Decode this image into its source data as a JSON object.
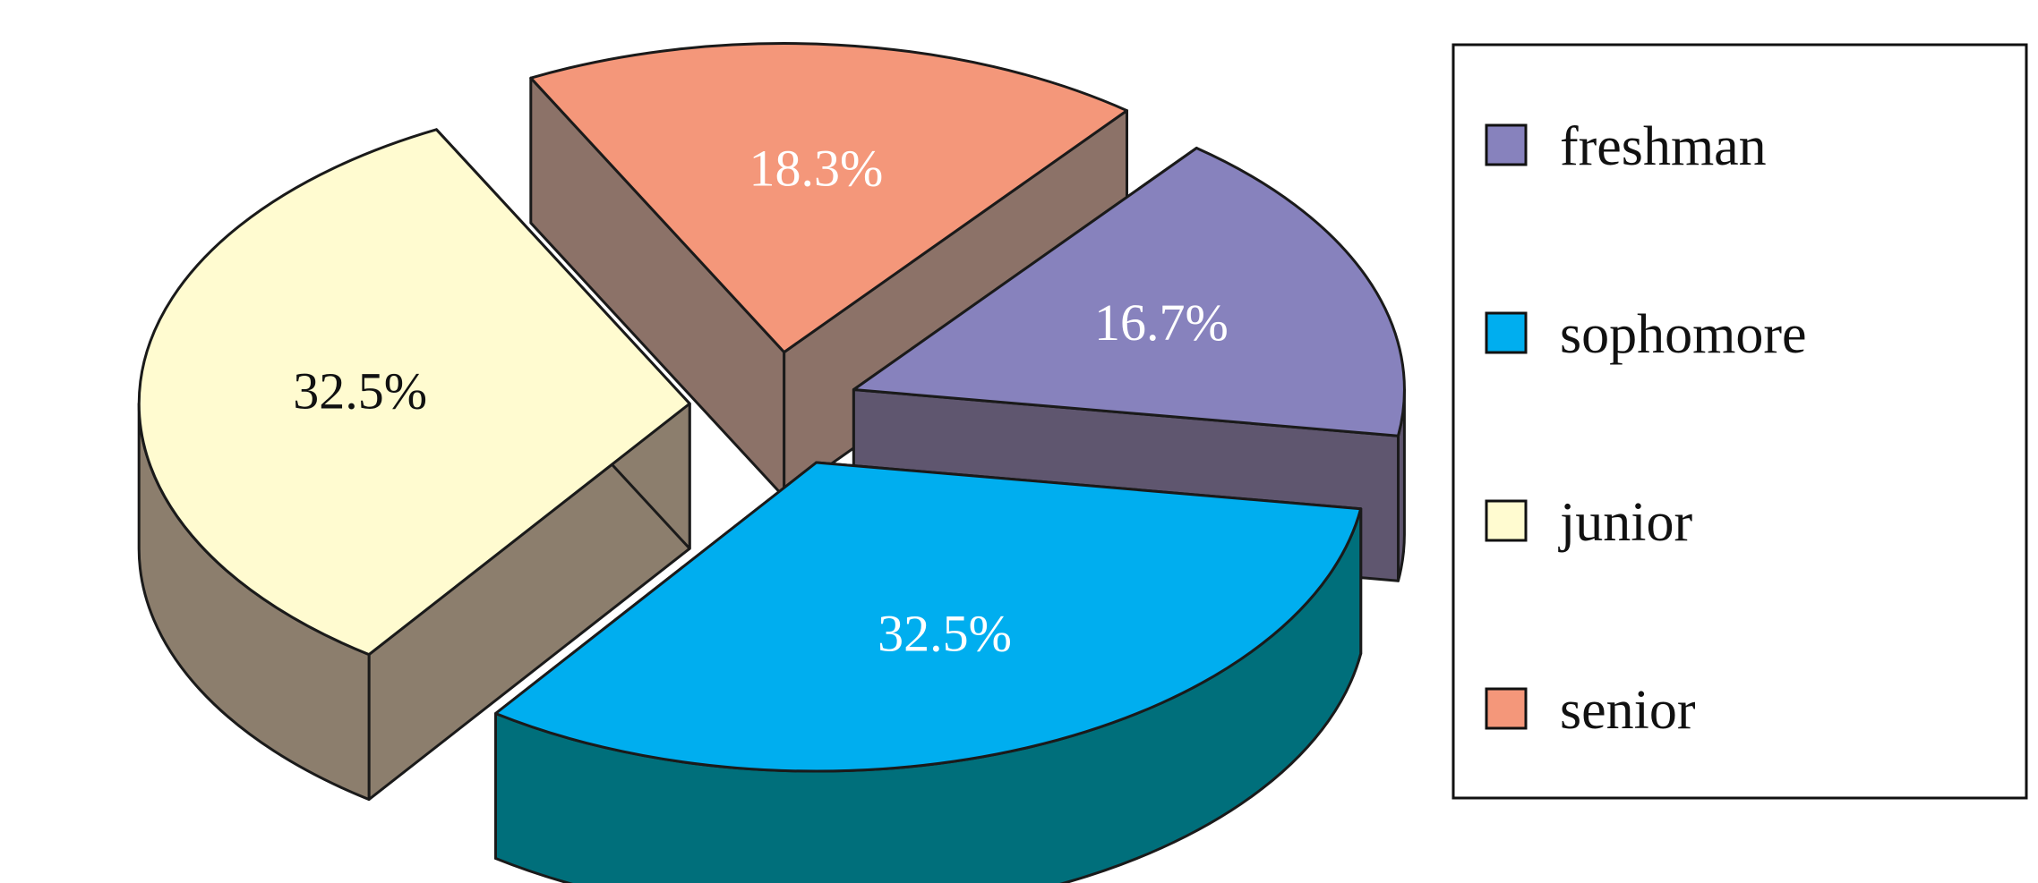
{
  "chart_data": {
    "type": "pie",
    "style": "3d-exploded",
    "title": "",
    "slices": [
      {
        "name": "freshman",
        "value": 16.7,
        "label": "16.7%",
        "color": "#8782bd",
        "side_color": "#5f566f",
        "label_color": "#ffffff"
      },
      {
        "name": "sophomore",
        "value": 32.5,
        "label": "32.5%",
        "color": "#00aeef",
        "side_color": "#006f7b",
        "label_color": "#ffffff"
      },
      {
        "name": "junior",
        "value": 32.5,
        "label": "32.5%",
        "color": "#fffbd0",
        "side_color": "#8c7e6d",
        "label_color": "#111111"
      },
      {
        "name": "senior",
        "value": 18.3,
        "label": "18.3%",
        "color": "#f4977a",
        "side_color": "#8c7268",
        "label_color": "#ffffff"
      }
    ],
    "legend": {
      "placement": "right",
      "entries": [
        "freshman",
        "sophomore",
        "junior",
        "senior"
      ]
    }
  }
}
